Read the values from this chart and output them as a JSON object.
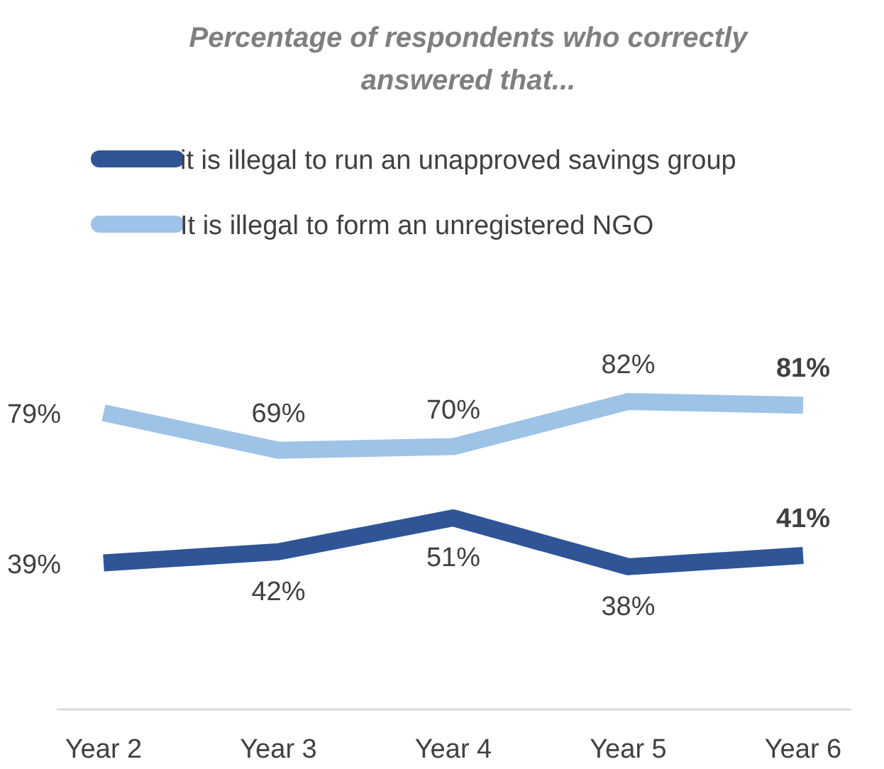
{
  "chart_data": {
    "type": "line",
    "title": "Percentage of respondents who correctly answered that...",
    "categories": [
      "Year 2",
      "Year 3",
      "Year 4",
      "Year 5",
      "Year 6"
    ],
    "legend": "top",
    "marker": "none",
    "line_style": "solid",
    "series": [
      {
        "name": "it is illegal to run an unapproved savings group",
        "color": "#2f5597",
        "values": [
          39,
          42,
          51,
          38,
          41
        ],
        "value_labels": [
          "39%",
          "42%",
          "51%",
          "38%",
          "41%"
        ]
      },
      {
        "name": "It is illegal to form an unregistered NGO",
        "color": "#9dc3e6",
        "values": [
          79,
          69,
          70,
          82,
          81
        ],
        "value_labels": [
          "79%",
          "69%",
          "70%",
          "82%",
          "81%"
        ]
      }
    ]
  }
}
